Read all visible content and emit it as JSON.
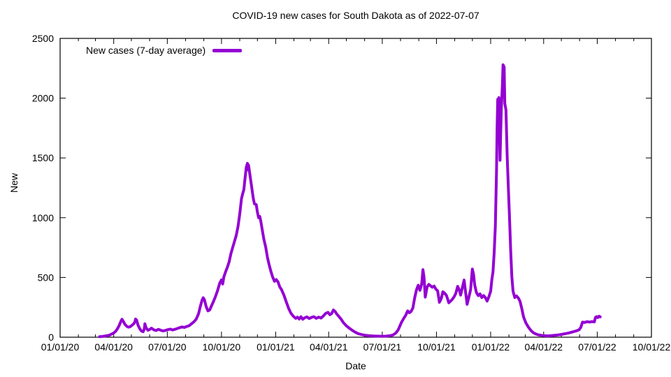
{
  "chart_data": {
    "type": "line",
    "title": "COVID-19 new cases for South Dakota as of 2022-07-07",
    "xlabel": "Date",
    "ylabel": "New",
    "grid": false,
    "legend_position": "top-left-inside",
    "x_range": [
      "2020-01-01",
      "2022-10-01"
    ],
    "ylim": [
      0,
      2500
    ],
    "y_ticks": [
      0,
      500,
      1000,
      1500,
      2000,
      2500
    ],
    "x_ticks": [
      {
        "label": "01/01/20",
        "date": "2020-01-01"
      },
      {
        "label": "04/01/20",
        "date": "2020-04-01"
      },
      {
        "label": "07/01/20",
        "date": "2020-07-01"
      },
      {
        "label": "10/01/20",
        "date": "2020-10-01"
      },
      {
        "label": "01/01/21",
        "date": "2021-01-01"
      },
      {
        "label": "04/01/21",
        "date": "2021-04-01"
      },
      {
        "label": "07/01/21",
        "date": "2021-07-01"
      },
      {
        "label": "10/01/21",
        "date": "2021-10-01"
      },
      {
        "label": "01/01/22",
        "date": "2022-01-01"
      },
      {
        "label": "04/01/22",
        "date": "2022-04-01"
      },
      {
        "label": "07/01/22",
        "date": "2022-07-01"
      },
      {
        "label": "10/01/22",
        "date": "2022-10-01"
      }
    ],
    "minor_tick_interval": "month",
    "series": [
      {
        "name": "New cases (7-day average)",
        "color": "#9400D3",
        "points": [
          [
            "2020-03-08",
            4
          ],
          [
            "2020-03-12",
            6
          ],
          [
            "2020-03-16",
            9
          ],
          [
            "2020-03-20",
            12
          ],
          [
            "2020-03-24",
            16
          ],
          [
            "2020-03-28",
            25
          ],
          [
            "2020-04-01",
            35
          ],
          [
            "2020-04-04",
            48
          ],
          [
            "2020-04-07",
            68
          ],
          [
            "2020-04-10",
            95
          ],
          [
            "2020-04-13",
            130
          ],
          [
            "2020-04-15",
            150
          ],
          [
            "2020-04-17",
            135
          ],
          [
            "2020-04-20",
            108
          ],
          [
            "2020-04-23",
            92
          ],
          [
            "2020-04-26",
            84
          ],
          [
            "2020-04-29",
            88
          ],
          [
            "2020-05-02",
            100
          ],
          [
            "2020-05-05",
            112
          ],
          [
            "2020-05-07",
            128
          ],
          [
            "2020-05-08",
            152
          ],
          [
            "2020-05-10",
            143
          ],
          [
            "2020-05-12",
            105
          ],
          [
            "2020-05-15",
            72
          ],
          [
            "2020-05-18",
            52
          ],
          [
            "2020-05-21",
            46
          ],
          [
            "2020-05-23",
            70
          ],
          [
            "2020-05-24",
            112
          ],
          [
            "2020-05-26",
            78
          ],
          [
            "2020-05-29",
            58
          ],
          [
            "2020-06-01",
            64
          ],
          [
            "2020-06-04",
            76
          ],
          [
            "2020-06-08",
            62
          ],
          [
            "2020-06-12",
            56
          ],
          [
            "2020-06-16",
            66
          ],
          [
            "2020-06-20",
            58
          ],
          [
            "2020-06-24",
            52
          ],
          [
            "2020-06-28",
            57
          ],
          [
            "2020-07-02",
            63
          ],
          [
            "2020-07-06",
            68
          ],
          [
            "2020-07-10",
            61
          ],
          [
            "2020-07-14",
            66
          ],
          [
            "2020-07-18",
            73
          ],
          [
            "2020-07-22",
            80
          ],
          [
            "2020-07-26",
            86
          ],
          [
            "2020-07-30",
            82
          ],
          [
            "2020-08-03",
            90
          ],
          [
            "2020-08-07",
            96
          ],
          [
            "2020-08-11",
            112
          ],
          [
            "2020-08-15",
            128
          ],
          [
            "2020-08-19",
            150
          ],
          [
            "2020-08-23",
            195
          ],
          [
            "2020-08-26",
            255
          ],
          [
            "2020-08-29",
            310
          ],
          [
            "2020-08-31",
            330
          ],
          [
            "2020-09-02",
            315
          ],
          [
            "2020-09-05",
            255
          ],
          [
            "2020-09-08",
            220
          ],
          [
            "2020-09-11",
            228
          ],
          [
            "2020-09-14",
            262
          ],
          [
            "2020-09-17",
            295
          ],
          [
            "2020-09-20",
            330
          ],
          [
            "2020-09-24",
            385
          ],
          [
            "2020-09-28",
            452
          ],
          [
            "2020-10-01",
            480
          ],
          [
            "2020-10-03",
            445
          ],
          [
            "2020-10-05",
            505
          ],
          [
            "2020-10-08",
            548
          ],
          [
            "2020-10-11",
            585
          ],
          [
            "2020-10-14",
            630
          ],
          [
            "2020-10-17",
            700
          ],
          [
            "2020-10-20",
            750
          ],
          [
            "2020-10-23",
            800
          ],
          [
            "2020-10-26",
            850
          ],
          [
            "2020-10-29",
            925
          ],
          [
            "2020-11-01",
            1030
          ],
          [
            "2020-11-04",
            1160
          ],
          [
            "2020-11-06",
            1200
          ],
          [
            "2020-11-08",
            1235
          ],
          [
            "2020-11-10",
            1330
          ],
          [
            "2020-11-12",
            1420
          ],
          [
            "2020-11-14",
            1455
          ],
          [
            "2020-11-15",
            1400
          ],
          [
            "2020-11-16",
            1440
          ],
          [
            "2020-11-18",
            1370
          ],
          [
            "2020-11-20",
            1300
          ],
          [
            "2020-11-22",
            1230
          ],
          [
            "2020-11-24",
            1160
          ],
          [
            "2020-11-26",
            1115
          ],
          [
            "2020-11-29",
            1110
          ],
          [
            "2020-12-01",
            1045
          ],
          [
            "2020-12-03",
            1000
          ],
          [
            "2020-12-05",
            1010
          ],
          [
            "2020-12-07",
            965
          ],
          [
            "2020-12-09",
            905
          ],
          [
            "2020-12-12",
            820
          ],
          [
            "2020-12-15",
            755
          ],
          [
            "2020-12-18",
            668
          ],
          [
            "2020-12-21",
            605
          ],
          [
            "2020-12-24",
            548
          ],
          [
            "2020-12-27",
            502
          ],
          [
            "2020-12-30",
            468
          ],
          [
            "2021-01-02",
            482
          ],
          [
            "2021-01-05",
            462
          ],
          [
            "2021-01-08",
            420
          ],
          [
            "2021-01-11",
            398
          ],
          [
            "2021-01-15",
            352
          ],
          [
            "2021-01-19",
            295
          ],
          [
            "2021-01-23",
            242
          ],
          [
            "2021-01-27",
            200
          ],
          [
            "2021-01-31",
            175
          ],
          [
            "2021-02-04",
            158
          ],
          [
            "2021-02-07",
            168
          ],
          [
            "2021-02-10",
            152
          ],
          [
            "2021-02-13",
            172
          ],
          [
            "2021-02-16",
            150
          ],
          [
            "2021-02-19",
            162
          ],
          [
            "2021-02-23",
            170
          ],
          [
            "2021-02-27",
            156
          ],
          [
            "2021-03-03",
            166
          ],
          [
            "2021-03-07",
            172
          ],
          [
            "2021-03-11",
            158
          ],
          [
            "2021-03-15",
            168
          ],
          [
            "2021-03-19",
            160
          ],
          [
            "2021-03-23",
            178
          ],
          [
            "2021-03-27",
            200
          ],
          [
            "2021-03-31",
            208
          ],
          [
            "2021-04-03",
            188
          ],
          [
            "2021-04-06",
            198
          ],
          [
            "2021-04-09",
            228
          ],
          [
            "2021-04-12",
            215
          ],
          [
            "2021-04-15",
            192
          ],
          [
            "2021-04-18",
            175
          ],
          [
            "2021-04-22",
            152
          ],
          [
            "2021-04-26",
            122
          ],
          [
            "2021-05-01",
            95
          ],
          [
            "2021-05-06",
            76
          ],
          [
            "2021-05-11",
            58
          ],
          [
            "2021-05-16",
            42
          ],
          [
            "2021-05-21",
            30
          ],
          [
            "2021-05-27",
            22
          ],
          [
            "2021-06-02",
            16
          ],
          [
            "2021-06-09",
            12
          ],
          [
            "2021-06-16",
            10
          ],
          [
            "2021-06-23",
            9
          ],
          [
            "2021-06-30",
            8
          ],
          [
            "2021-07-07",
            9
          ],
          [
            "2021-07-14",
            13
          ],
          [
            "2021-07-19",
            18
          ],
          [
            "2021-07-24",
            35
          ],
          [
            "2021-07-28",
            62
          ],
          [
            "2021-07-31",
            95
          ],
          [
            "2021-08-03",
            128
          ],
          [
            "2021-08-07",
            162
          ],
          [
            "2021-08-10",
            185
          ],
          [
            "2021-08-13",
            220
          ],
          [
            "2021-08-16",
            205
          ],
          [
            "2021-08-19",
            216
          ],
          [
            "2021-08-22",
            245
          ],
          [
            "2021-08-25",
            330
          ],
          [
            "2021-08-28",
            395
          ],
          [
            "2021-08-31",
            435
          ],
          [
            "2021-09-03",
            392
          ],
          [
            "2021-09-06",
            448
          ],
          [
            "2021-09-08",
            565
          ],
          [
            "2021-09-10",
            500
          ],
          [
            "2021-09-12",
            335
          ],
          [
            "2021-09-15",
            420
          ],
          [
            "2021-09-18",
            442
          ],
          [
            "2021-09-21",
            430
          ],
          [
            "2021-09-24",
            418
          ],
          [
            "2021-09-27",
            428
          ],
          [
            "2021-09-30",
            402
          ],
          [
            "2021-10-03",
            388
          ],
          [
            "2021-10-06",
            292
          ],
          [
            "2021-10-09",
            322
          ],
          [
            "2021-10-12",
            380
          ],
          [
            "2021-10-15",
            368
          ],
          [
            "2021-10-18",
            348
          ],
          [
            "2021-10-22",
            288
          ],
          [
            "2021-10-25",
            302
          ],
          [
            "2021-10-28",
            318
          ],
          [
            "2021-10-31",
            338
          ],
          [
            "2021-11-03",
            368
          ],
          [
            "2021-11-06",
            425
          ],
          [
            "2021-11-09",
            392
          ],
          [
            "2021-11-11",
            352
          ],
          [
            "2021-11-14",
            415
          ],
          [
            "2021-11-17",
            478
          ],
          [
            "2021-11-20",
            355
          ],
          [
            "2021-11-22",
            275
          ],
          [
            "2021-11-25",
            335
          ],
          [
            "2021-11-28",
            398
          ],
          [
            "2021-12-01",
            570
          ],
          [
            "2021-12-03",
            525
          ],
          [
            "2021-12-05",
            435
          ],
          [
            "2021-12-08",
            372
          ],
          [
            "2021-12-11",
            348
          ],
          [
            "2021-12-14",
            362
          ],
          [
            "2021-12-17",
            332
          ],
          [
            "2021-12-20",
            348
          ],
          [
            "2021-12-23",
            332
          ],
          [
            "2021-12-26",
            302
          ],
          [
            "2021-12-29",
            338
          ],
          [
            "2022-01-01",
            385
          ],
          [
            "2022-01-03",
            478
          ],
          [
            "2022-01-05",
            545
          ],
          [
            "2022-01-07",
            705
          ],
          [
            "2022-01-09",
            930
          ],
          [
            "2022-01-11",
            1400
          ],
          [
            "2022-01-12",
            1750
          ],
          [
            "2022-01-13",
            1990
          ],
          [
            "2022-01-14",
            1945
          ],
          [
            "2022-01-15",
            2005
          ],
          [
            "2022-01-16",
            1720
          ],
          [
            "2022-01-17",
            1480
          ],
          [
            "2022-01-19",
            1895
          ],
          [
            "2022-01-21",
            2110
          ],
          [
            "2022-01-22",
            2280
          ],
          [
            "2022-01-24",
            2260
          ],
          [
            "2022-01-25",
            1955
          ],
          [
            "2022-01-27",
            1900
          ],
          [
            "2022-01-29",
            1520
          ],
          [
            "2022-01-31",
            1265
          ],
          [
            "2022-02-02",
            1010
          ],
          [
            "2022-02-04",
            730
          ],
          [
            "2022-02-06",
            505
          ],
          [
            "2022-02-08",
            385
          ],
          [
            "2022-02-11",
            332
          ],
          [
            "2022-02-14",
            345
          ],
          [
            "2022-02-17",
            328
          ],
          [
            "2022-02-20",
            298
          ],
          [
            "2022-02-23",
            238
          ],
          [
            "2022-02-26",
            168
          ],
          [
            "2022-03-02",
            118
          ],
          [
            "2022-03-06",
            85
          ],
          [
            "2022-03-10",
            58
          ],
          [
            "2022-03-14",
            40
          ],
          [
            "2022-03-18",
            28
          ],
          [
            "2022-03-23",
            20
          ],
          [
            "2022-03-28",
            16
          ],
          [
            "2022-04-02",
            13
          ],
          [
            "2022-04-08",
            11
          ],
          [
            "2022-04-14",
            13
          ],
          [
            "2022-04-20",
            16
          ],
          [
            "2022-04-26",
            19
          ],
          [
            "2022-05-02",
            24
          ],
          [
            "2022-05-08",
            30
          ],
          [
            "2022-05-14",
            36
          ],
          [
            "2022-05-20",
            44
          ],
          [
            "2022-05-26",
            52
          ],
          [
            "2022-05-31",
            62
          ],
          [
            "2022-06-03",
            82
          ],
          [
            "2022-06-06",
            126
          ],
          [
            "2022-06-10",
            124
          ],
          [
            "2022-06-14",
            130
          ],
          [
            "2022-06-18",
            126
          ],
          [
            "2022-06-22",
            131
          ],
          [
            "2022-06-26",
            128
          ],
          [
            "2022-06-28",
            166
          ],
          [
            "2022-06-30",
            172
          ],
          [
            "2022-07-02",
            164
          ],
          [
            "2022-07-04",
            176
          ],
          [
            "2022-07-06",
            170
          ]
        ]
      }
    ]
  }
}
